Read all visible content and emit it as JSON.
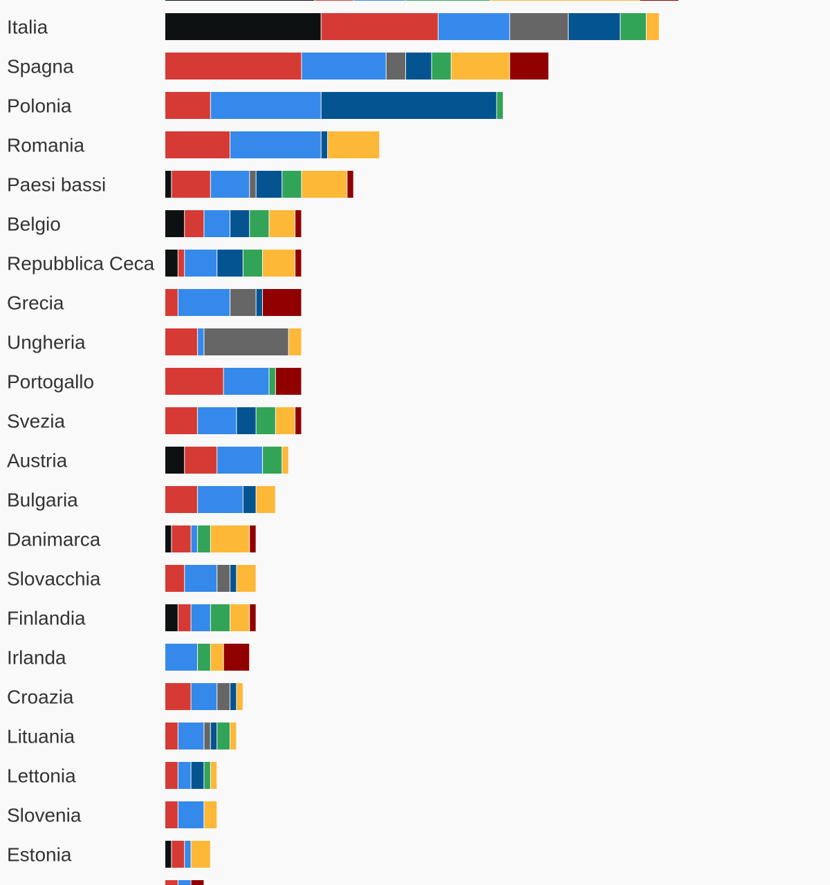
{
  "chart_data": {
    "type": "bar",
    "orientation": "horizontal",
    "stacked": true,
    "title": "",
    "xlabel": "",
    "ylabel": "",
    "xlim": [
      0,
      102.2
    ],
    "grid": false,
    "legend": "none",
    "categories": [
      "Italia",
      "Spagna",
      "Polonia",
      "Romania",
      "Paesi bassi",
      "Belgio",
      "Repubblica Ceca",
      "Grecia",
      "Ungheria",
      "Portogallo",
      "Svezia",
      "Austria",
      "Bulgaria",
      "Danimarca",
      "Slovacchia",
      "Finlandia",
      "Irlanda",
      "Croazia",
      "Lituania",
      "Lettonia",
      "Slovenia",
      "Estonia"
    ],
    "series": [
      {
        "color": "#0e1111",
        "values": [
          24,
          0,
          0,
          0,
          1,
          3,
          2,
          0,
          0,
          0,
          0,
          3,
          0,
          1,
          0,
          2,
          0,
          0,
          0,
          0,
          0,
          1
        ]
      },
      {
        "color": "#d63a35",
        "values": [
          18,
          21,
          7,
          10,
          6,
          3,
          1,
          2,
          5,
          9,
          5,
          5,
          5,
          3,
          3,
          2,
          0,
          4,
          2,
          2,
          2,
          2
        ]
      },
      {
        "color": "#3589ea",
        "values": [
          11,
          13,
          17,
          14,
          6,
          4,
          5,
          8,
          1,
          7,
          6,
          7,
          7,
          1,
          5,
          3,
          5,
          4,
          4,
          2,
          4,
          1
        ]
      },
      {
        "color": "#666666",
        "values": [
          9,
          3,
          0,
          0,
          1,
          0,
          0,
          4,
          13,
          0,
          0,
          0,
          0,
          0,
          2,
          0,
          0,
          2,
          1,
          0,
          0,
          0
        ]
      },
      {
        "color": "#045491",
        "values": [
          8,
          4,
          27,
          1,
          4,
          3,
          4,
          1,
          0,
          0,
          3,
          0,
          2,
          0,
          1,
          0,
          0,
          1,
          1,
          2,
          0,
          0
        ]
      },
      {
        "color": "#32a457",
        "values": [
          4,
          3,
          1,
          0,
          3,
          3,
          3,
          0,
          0,
          1,
          3,
          3,
          0,
          2,
          0,
          3,
          2,
          0,
          2,
          1,
          0,
          0
        ]
      },
      {
        "color": "#fdb838",
        "values": [
          2,
          9,
          0,
          8,
          7,
          4,
          5,
          0,
          2,
          0,
          3,
          1,
          3,
          6,
          3,
          3,
          2,
          1,
          1,
          1,
          2,
          3
        ]
      },
      {
        "color": "#910000",
        "values": [
          0,
          6,
          0,
          0,
          1,
          1,
          1,
          6,
          0,
          4,
          1,
          0,
          0,
          1,
          0,
          1,
          4,
          0,
          0,
          0,
          0,
          0
        ]
      }
    ],
    "partial_top_row": [
      23,
      6,
      8,
      13,
      23,
      6
    ],
    "partial_bottom_row": [
      2,
      2,
      2
    ]
  }
}
